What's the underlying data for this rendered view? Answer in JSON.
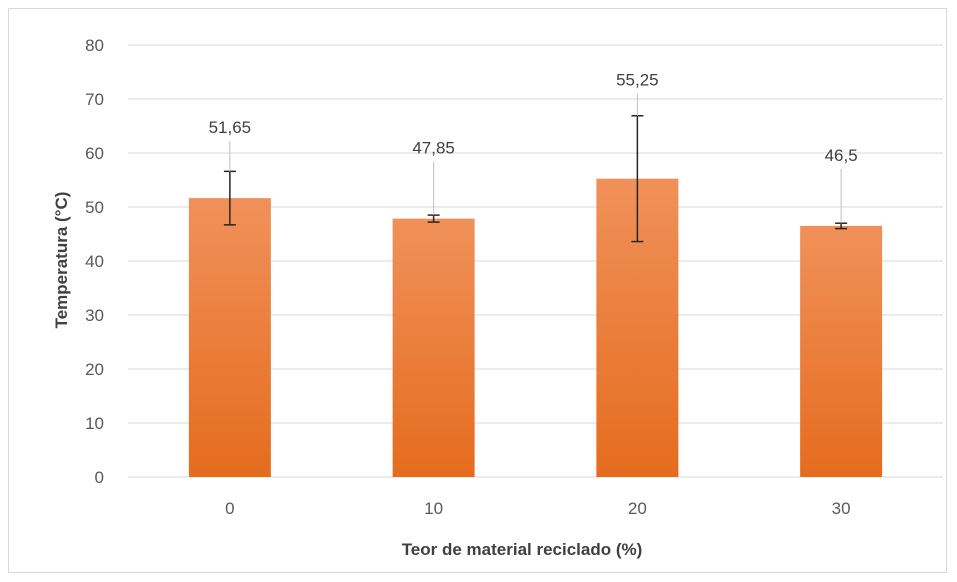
{
  "chart_data": {
    "type": "bar",
    "categories": [
      "0",
      "10",
      "20",
      "30"
    ],
    "values": [
      51.65,
      47.85,
      55.25,
      46.5
    ],
    "value_labels": [
      "51,65",
      "47,85",
      "55,25",
      "46,5"
    ],
    "error_bars": [
      {
        "low": 46.7,
        "high": 56.6
      },
      {
        "low": 47.2,
        "high": 48.5
      },
      {
        "low": 43.6,
        "high": 66.9
      },
      {
        "low": 46.0,
        "high": 47.0
      }
    ],
    "title": "",
    "xlabel": "Teor de material reciclado (%)",
    "ylabel": "Temperatura (°C)",
    "ylim": [
      0,
      80
    ],
    "yticks": [
      0,
      10,
      20,
      30,
      40,
      50,
      60,
      70,
      80
    ],
    "grid": true,
    "legend": "none",
    "bar_color_top": "#f0915a",
    "bar_color_bottom": "#e56c1e",
    "gridline_color": "#d9d9d9",
    "errorbar_color": "#262626"
  }
}
